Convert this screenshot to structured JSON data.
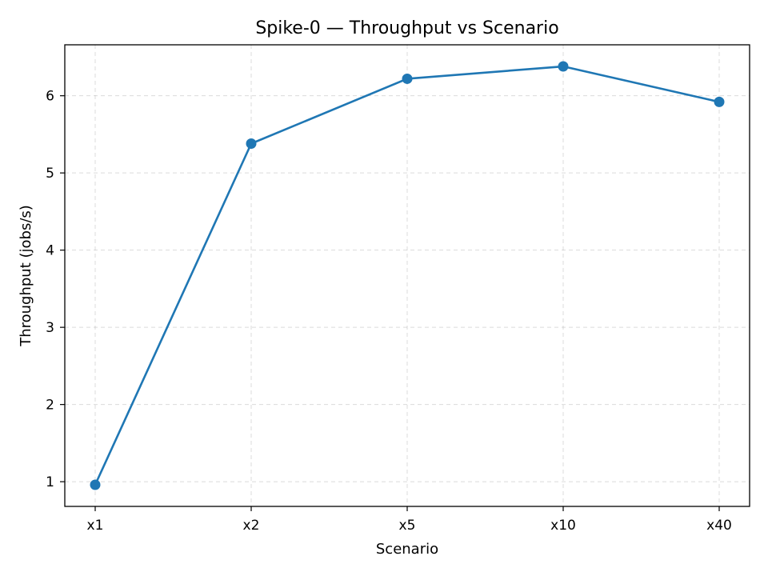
{
  "chart_data": {
    "type": "line",
    "title": "Spike-0 — Throughput vs Scenario",
    "xlabel": "Scenario",
    "ylabel": "Throughput (jobs/s)",
    "categories": [
      "x1",
      "x2",
      "x5",
      "x10",
      "x40"
    ],
    "series": [
      {
        "values": [
          0.96,
          5.38,
          6.22,
          6.38,
          5.92
        ],
        "color": "#1f77b4"
      }
    ],
    "ylim": [
      0.68,
      6.66
    ],
    "yticks": [
      1,
      2,
      3,
      4,
      5,
      6
    ],
    "grid": true,
    "marker": "circle"
  }
}
